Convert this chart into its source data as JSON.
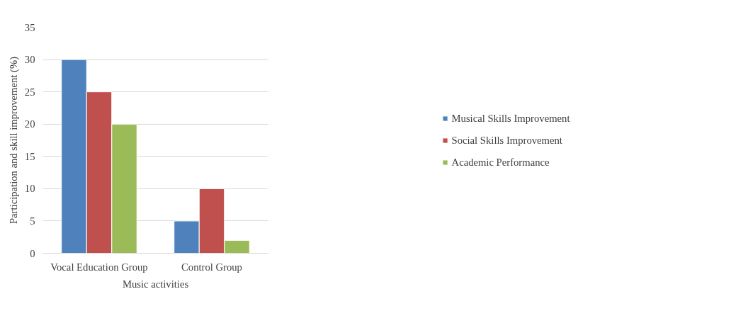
{
  "chart_data": {
    "type": "bar",
    "xlabel": "Music activities",
    "ylabel": "Participation and skill improvement (%)",
    "categories": [
      "Vocal Education Group",
      "Control Group"
    ],
    "series": [
      {
        "name": "Musical Skills Improvement",
        "color": "#4f81bd",
        "values": [
          30,
          5
        ]
      },
      {
        "name": "Social Skills Improvement",
        "color": "#c0504d",
        "values": [
          25,
          10
        ]
      },
      {
        "name": "Academic Performance",
        "color": "#9bbb59",
        "values": [
          20,
          2
        ]
      }
    ],
    "ylim": [
      0,
      35
    ],
    "yticks": [
      0,
      5,
      10,
      15,
      20,
      25,
      30,
      35
    ],
    "grid": "y",
    "legend": "right"
  }
}
